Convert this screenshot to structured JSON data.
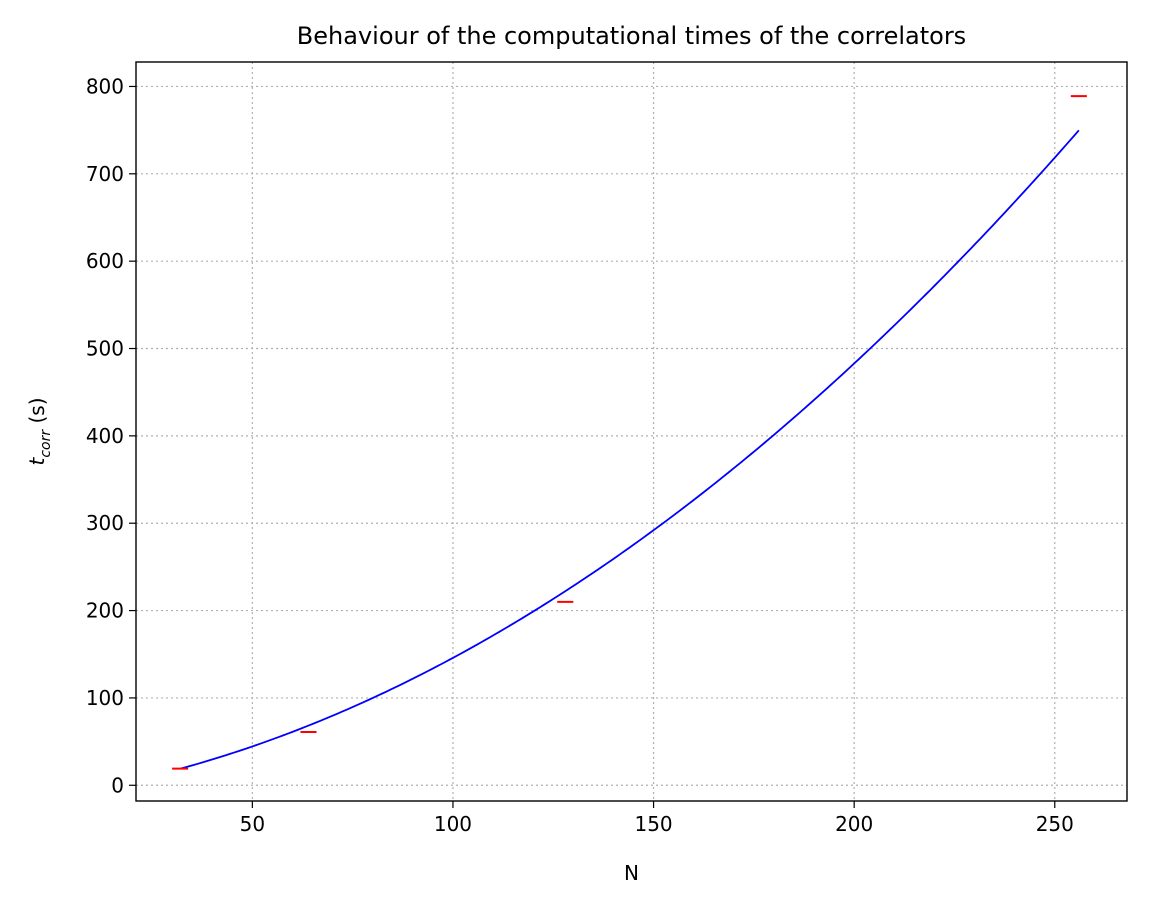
{
  "chart_data": {
    "type": "line",
    "title": "Behaviour of the computational times of the correlators",
    "xlabel": "N",
    "ylabel": {
      "base": "t",
      "subscript": "corr",
      "suffix": " (s)"
    },
    "xlim": [
      21,
      268
    ],
    "ylim": [
      -18,
      828
    ],
    "x_ticks": [
      50,
      100,
      150,
      200,
      250
    ],
    "y_ticks": [
      0,
      100,
      200,
      300,
      400,
      500,
      600,
      700,
      800
    ],
    "grid": true,
    "series": [
      {
        "type": "errorbar",
        "color": "#ff0000",
        "points": [
          {
            "x": 32,
            "y": 19,
            "xerr": 2
          },
          {
            "x": 64,
            "y": 61,
            "xerr": 2
          },
          {
            "x": 128,
            "y": 210,
            "xerr": 2
          },
          {
            "x": 256,
            "y": 789,
            "xerr": 2
          }
        ]
      },
      {
        "type": "fit",
        "color": "#0000ff",
        "x_range": [
          32,
          256
        ],
        "coefficients": {
          "a": 0.008948,
          "b": 0.6858,
          "c": -12.2
        }
      }
    ]
  }
}
